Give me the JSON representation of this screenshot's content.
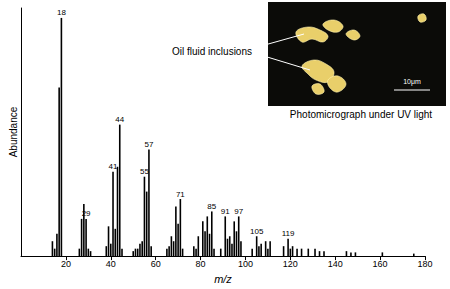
{
  "chart_data": {
    "type": "bar",
    "x_label": "m/z",
    "y_label": "Abundance",
    "x": [
      14,
      15,
      16,
      17,
      18,
      26,
      27,
      28,
      29,
      30,
      31,
      38,
      39,
      40,
      41,
      42,
      43,
      44,
      45,
      50,
      51,
      52,
      53,
      54,
      55,
      56,
      57,
      58,
      65,
      66,
      67,
      68,
      69,
      70,
      71,
      72,
      77,
      78,
      79,
      81,
      82,
      83,
      84,
      85,
      86,
      89,
      91,
      92,
      93,
      94,
      95,
      96,
      97,
      98,
      103,
      105,
      106,
      107,
      109,
      110,
      111,
      117,
      119,
      120,
      121,
      123,
      125,
      128,
      131,
      133,
      135,
      145,
      147,
      149,
      161,
      175
    ],
    "values": [
      6,
      3,
      9,
      68,
      96,
      3,
      15,
      21,
      15,
      3,
      2,
      4,
      12,
      5,
      34,
      11,
      36,
      53,
      3,
      2,
      3,
      3,
      5,
      6,
      32,
      26,
      43,
      4,
      3,
      4,
      8,
      6,
      20,
      13,
      23,
      3,
      4,
      3,
      8,
      14,
      10,
      16,
      9,
      18,
      3,
      3,
      16,
      7,
      8,
      5,
      14,
      10,
      16,
      6,
      3,
      8,
      4,
      5,
      6,
      3,
      6,
      4,
      7,
      3,
      4,
      3,
      3,
      3,
      3,
      2,
      2,
      2,
      1.5,
      1.5,
      1.5,
      1
    ],
    "color": "#000000",
    "xlim": [
      0,
      180
    ],
    "xticks": [
      20,
      40,
      60,
      80,
      100,
      120,
      140,
      160,
      180
    ],
    "ylim": [
      0,
      100
    ],
    "grid": false,
    "tick_labels": "x",
    "annotations": [
      {
        "text": "18",
        "x": 18
      },
      {
        "text": "29",
        "x": 29
      },
      {
        "text": "41",
        "x": 41
      },
      {
        "text": "44",
        "x": 44
      },
      {
        "text": "55",
        "x": 55
      },
      {
        "text": "57",
        "x": 57
      },
      {
        "text": "71",
        "x": 71
      },
      {
        "text": "85",
        "x": 85
      },
      {
        "text": "91",
        "x": 91
      },
      {
        "text": "97",
        "x": 97
      },
      {
        "text": "105",
        "x": 105
      },
      {
        "text": "119",
        "x": 119
      }
    ]
  },
  "inset": {
    "pointer_label": "Oil fluid inclusions",
    "caption": "Photomicrograph under UV light",
    "scale_bar": "10μm"
  }
}
